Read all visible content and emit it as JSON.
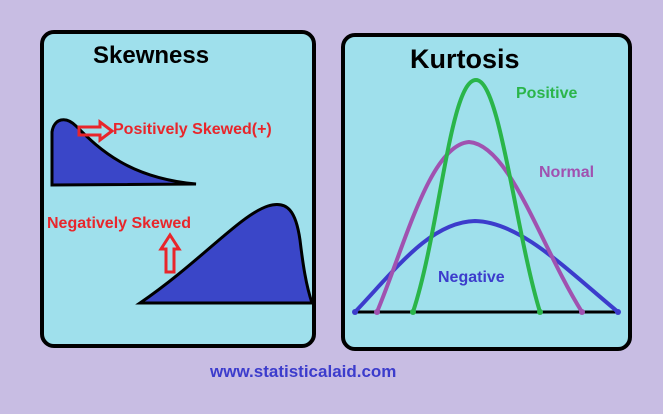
{
  "skewness_panel": {
    "title": "Skewness",
    "positive_label": "Positively Skewed(+)",
    "negative_label": "Negatively Skewed"
  },
  "kurtosis_panel": {
    "title": "Kurtosis",
    "curves": [
      {
        "name": "Positive",
        "color": "#2ab54a"
      },
      {
        "name": "Normal",
        "color": "#a052b0"
      },
      {
        "name": "Negative",
        "color": "#3c3ccc"
      }
    ]
  },
  "colors": {
    "panel_fill": "#9fe0ec",
    "background": "#c8bde3",
    "skew_fill": "#3a46c8",
    "arrow": "#e8262b"
  },
  "footer": {
    "website": "www.statisticalaid.com"
  }
}
